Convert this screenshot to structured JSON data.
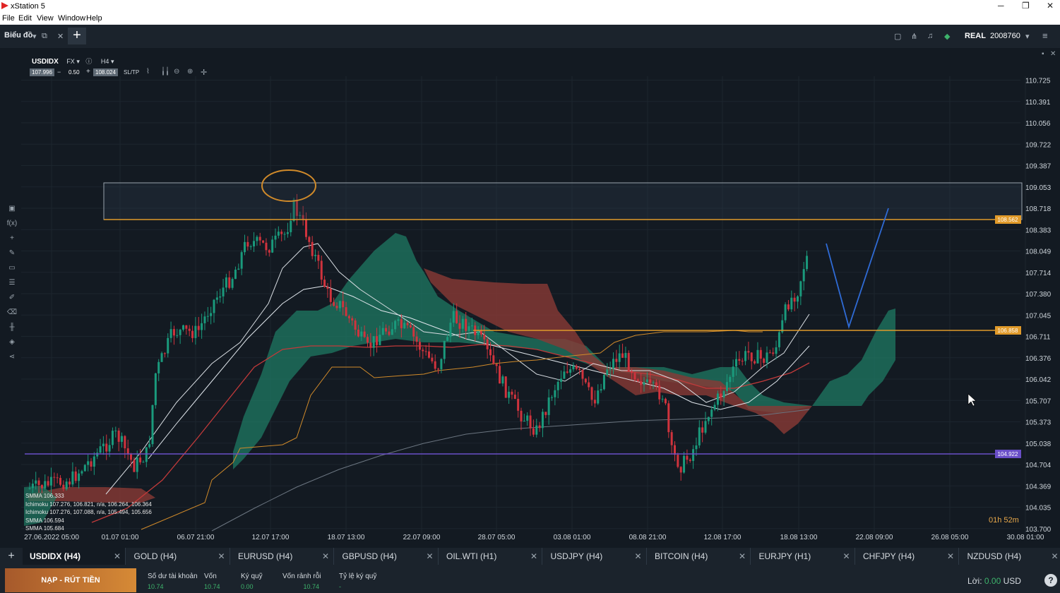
{
  "window": {
    "title": "xStation 5",
    "min": "─",
    "max": "❐",
    "close": "✕"
  },
  "menu": [
    "File",
    "Edit",
    "View",
    "Window",
    "Help"
  ],
  "topbar": {
    "tab_label": "Biểu đồ",
    "account_type": "REAL",
    "account_id": "2008760"
  },
  "symbol_header": {
    "symbol": "USDIDX",
    "type": "FX",
    "timeframe": "H4",
    "bid": "107.996",
    "step_minus": "−",
    "volume": "0.50",
    "step_plus": "+",
    "ask": "108.024",
    "sltp": "SL/TP"
  },
  "price_axis": [
    "110.725",
    "110.391",
    "110.056",
    "109.722",
    "109.387",
    "109.053",
    "108.718",
    "108.383",
    "108.049",
    "107.714",
    "107.380",
    "107.045",
    "106.711",
    "106.376",
    "106.042",
    "105.707",
    "105.373",
    "105.038",
    "104.704",
    "104.369",
    "104.035",
    "103.700"
  ],
  "time_axis": [
    "27.06.2022 05:00",
    "01.07 01:00",
    "06.07 21:00",
    "12.07 17:00",
    "18.07 13:00",
    "22.07 09:00",
    "28.07 05:00",
    "03.08 01:00",
    "08.08 21:00",
    "12.08 17:00",
    "18.08 13:00",
    "22.08 09:00",
    "26.08 05:00",
    "30.08 01:00"
  ],
  "line_labels": {
    "resistance": "108.562",
    "middle": "106.858",
    "support": "104.922"
  },
  "legend": [
    "SMMA 106.333",
    "Ichimoku 107.276, 106.821, n/a, 106.264, 106.364",
    "Ichimoku 107.276, 107.088, n/a, 105.494, 105.656",
    "SMMA 106.594",
    "SMMA 105.684"
  ],
  "countdown": "01h 52m",
  "symbol_tabs": [
    "USDIDX (H4)",
    "GOLD (H4)",
    "EURUSD (H4)",
    "GBPUSD (H4)",
    "OIL.WTI (H1)",
    "USDJPY (H4)",
    "BITCOIN (H4)",
    "EURJPY (H1)",
    "CHFJPY (H4)",
    "NZDUSD (H4)"
  ],
  "account": {
    "deposit_button": "NẠP - RÚT TIỀN",
    "columns": [
      {
        "label": "Số dư tài khoản",
        "value": "10.74"
      },
      {
        "label": "Vốn",
        "value": "10.74"
      },
      {
        "label": "Ký quỹ",
        "value": "0.00"
      },
      {
        "label": "Vốn rảnh rỗi",
        "value": "10.74"
      },
      {
        "label": "Tỷ lệ ký quỹ",
        "value": "-"
      }
    ],
    "profit_label": "Lời:",
    "profit_value": "0.00",
    "currency": "USD",
    "help": "?"
  },
  "colors": {
    "bull": "#1a9a7c",
    "bear": "#d0333d",
    "resistance": "#e09a2a",
    "support": "#6a4fc8",
    "cloud_bull": "#1f7a63",
    "cloud_bear": "#8a3a36"
  }
}
